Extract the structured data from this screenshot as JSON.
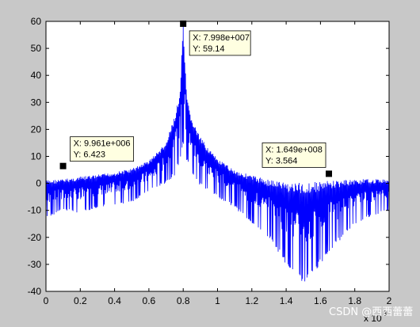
{
  "chart_data": {
    "type": "line",
    "xlim": [
      0,
      2
    ],
    "ylim": [
      -40,
      60
    ],
    "x_ticks": [
      "0",
      "0.2",
      "0.4",
      "0.6",
      "0.8",
      "1",
      "1.2",
      "1.4",
      "1.6",
      "1.8",
      "2"
    ],
    "y_ticks": [
      "60",
      "50",
      "40",
      "30",
      "20",
      "10",
      "0",
      "-10",
      "-20",
      "-30",
      "-40"
    ],
    "x_exponent_label": "x 10",
    "x_exponent": "8",
    "series_color": "#0000ff",
    "grid": false,
    "datatips": [
      {
        "x": 0.0996,
        "y": 6.423,
        "label_x": "X: 9.961e+006",
        "label_y": "Y: 6.423"
      },
      {
        "x": 0.7998,
        "y": 59.14,
        "label_x": "X: 7.998e+007",
        "label_y": "Y: 59.14"
      },
      {
        "x": 1.649,
        "y": 3.564,
        "label_x": "X: 1.649e+008",
        "label_y": "Y: 3.564"
      }
    ],
    "envelope": [
      {
        "x": 0.0,
        "upper": 1.2,
        "lower": -13
      },
      {
        "x": 0.1,
        "upper": 1.6,
        "lower": -10
      },
      {
        "x": 0.2,
        "upper": 2.5,
        "lower": -11
      },
      {
        "x": 0.3,
        "upper": 3.2,
        "lower": -9
      },
      {
        "x": 0.4,
        "upper": 4.2,
        "lower": -8
      },
      {
        "x": 0.5,
        "upper": 5.5,
        "lower": -7
      },
      {
        "x": 0.6,
        "upper": 8.5,
        "lower": -3
      },
      {
        "x": 0.7,
        "upper": 15,
        "lower": 0
      },
      {
        "x": 0.75,
        "upper": 25,
        "lower": 3
      },
      {
        "x": 0.78,
        "upper": 33,
        "lower": 8
      },
      {
        "x": 0.8,
        "upper": 59.14,
        "lower": 13
      },
      {
        "x": 0.82,
        "upper": 32,
        "lower": 8
      },
      {
        "x": 0.85,
        "upper": 24,
        "lower": 3
      },
      {
        "x": 0.9,
        "upper": 17,
        "lower": -1
      },
      {
        "x": 1.0,
        "upper": 9,
        "lower": -5
      },
      {
        "x": 1.1,
        "upper": 5,
        "lower": -9
      },
      {
        "x": 1.2,
        "upper": 3,
        "lower": -15
      },
      {
        "x": 1.3,
        "upper": 1.5,
        "lower": -20
      },
      {
        "x": 1.4,
        "upper": 0.5,
        "lower": -30
      },
      {
        "x": 1.5,
        "upper": 0.2,
        "lower": -38
      },
      {
        "x": 1.6,
        "upper": 0.8,
        "lower": -30
      },
      {
        "x": 1.7,
        "upper": 1.2,
        "lower": -22
      },
      {
        "x": 1.8,
        "upper": 1.5,
        "lower": -15
      },
      {
        "x": 1.9,
        "upper": 1.6,
        "lower": -12
      },
      {
        "x": 2.0,
        "upper": 1.5,
        "lower": -10
      }
    ]
  },
  "watermark": "CSDN @西西蕾蕾"
}
